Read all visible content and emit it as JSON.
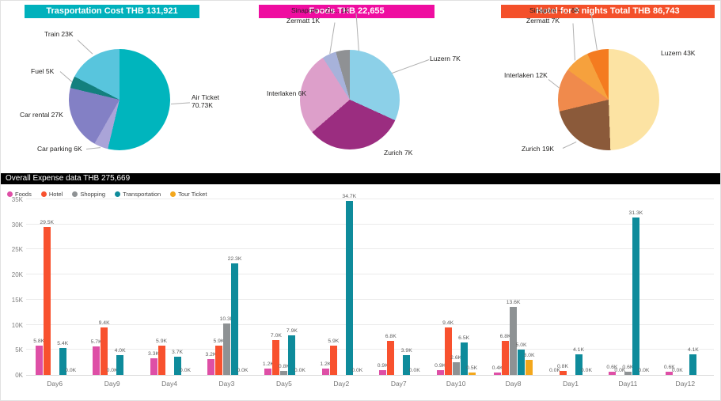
{
  "chart_data": [
    {
      "type": "pie",
      "title": "Trasportation Cost THB 131,921",
      "header_color": "#00b1bc",
      "slices": [
        {
          "name": "Air Ticket",
          "label": "Air Ticket 70.73K",
          "value": 70.73,
          "color": "#00b5bd"
        },
        {
          "name": "Car parking",
          "label": "Car parking 6K",
          "value": 6,
          "color": "#aaa4d8"
        },
        {
          "name": "Car rental",
          "label": "Car rental 27K",
          "value": 27,
          "color": "#8380c5"
        },
        {
          "name": "Fuel",
          "label": "Fuel 5K",
          "value": 5,
          "color": "#13807e"
        },
        {
          "name": "Train",
          "label": "Train 23K",
          "value": 23,
          "color": "#58c5dd"
        }
      ]
    },
    {
      "type": "pie",
      "title": "Foods THB 22,655",
      "header_color": "#ef0da0",
      "slices": [
        {
          "name": "Luzern",
          "label": "Luzern 7K",
          "value": 7,
          "color": "#8cd0e8"
        },
        {
          "name": "Zurich",
          "label": "Zurich 7K",
          "value": 7,
          "color": "#9b2d80"
        },
        {
          "name": "Interlaken",
          "label": "Interlaken 6K",
          "value": 6,
          "color": "#dd9fca"
        },
        {
          "name": "Zermatt",
          "label": "Zermatt 1K",
          "value": 1,
          "color": "#a7b2da"
        },
        {
          "name": "Sinapore",
          "label": "Sinapore – Zu... 1K",
          "value": 1,
          "color": "#8f9194"
        }
      ]
    },
    {
      "type": "pie",
      "title": "Hotel for 9 nights Total THB 86,743",
      "header_color": "#f4502a",
      "slices": [
        {
          "name": "Luzern",
          "label": "Luzern 43K",
          "value": 43,
          "color": "#fce3a3"
        },
        {
          "name": "Zurich",
          "label": "Zurich 19K",
          "value": 19,
          "color": "#8b5a3a"
        },
        {
          "name": "Interlaken",
          "label": "Interlaken 12K",
          "value": 12,
          "color": "#f08a4c"
        },
        {
          "name": "Zermatt",
          "label": "Zermatt 7K",
          "value": 7,
          "color": "#f6a13d"
        },
        {
          "name": "Sinapore",
          "label": "Sinapore – ... 6K",
          "value": 6,
          "color": "#f47b20"
        }
      ]
    },
    {
      "type": "bar",
      "title": "Overall Expense data THB 275,669",
      "header_color": "#000000",
      "ylim": [
        0,
        35
      ],
      "yticks": [
        0,
        5,
        10,
        15,
        20,
        25,
        30,
        35
      ],
      "ytick_suffix": "K",
      "categories": [
        "Day6",
        "Day9",
        "Day4",
        "Day3",
        "Day5",
        "Day2",
        "Day7",
        "Day10",
        "Day8",
        "Day1",
        "Day11",
        "Day12"
      ],
      "series": [
        {
          "name": "Foods",
          "color": "#de4fa6",
          "values": [
            5.8,
            5.7,
            3.3,
            3.2,
            1.2,
            1.2,
            0.9,
            0.9,
            0.4,
            0.0,
            0.6,
            0.6
          ]
        },
        {
          "name": "Hotel",
          "color": "#f8512e",
          "values": [
            29.5,
            9.4,
            5.9,
            5.9,
            7.0,
            5.9,
            6.8,
            9.4,
            6.8,
            0.8,
            0.0,
            0.0
          ]
        },
        {
          "name": "Shopping",
          "color": "#8e9294",
          "values": [
            null,
            0.0,
            null,
            10.3,
            0.8,
            null,
            null,
            2.6,
            13.6,
            null,
            0.6,
            null
          ]
        },
        {
          "name": "Transportation",
          "color": "#0e8b9b",
          "values": [
            5.4,
            4.0,
            3.7,
            22.3,
            7.9,
            34.7,
            3.9,
            6.5,
            5.0,
            4.1,
            31.3,
            4.1
          ]
        },
        {
          "name": "Tour Ticket",
          "color": "#f3a71c",
          "values": [
            0.0,
            null,
            0.0,
            0.0,
            0.0,
            0.0,
            0.0,
            0.5,
            3.0,
            0.0,
            0.0,
            null
          ]
        }
      ]
    }
  ]
}
